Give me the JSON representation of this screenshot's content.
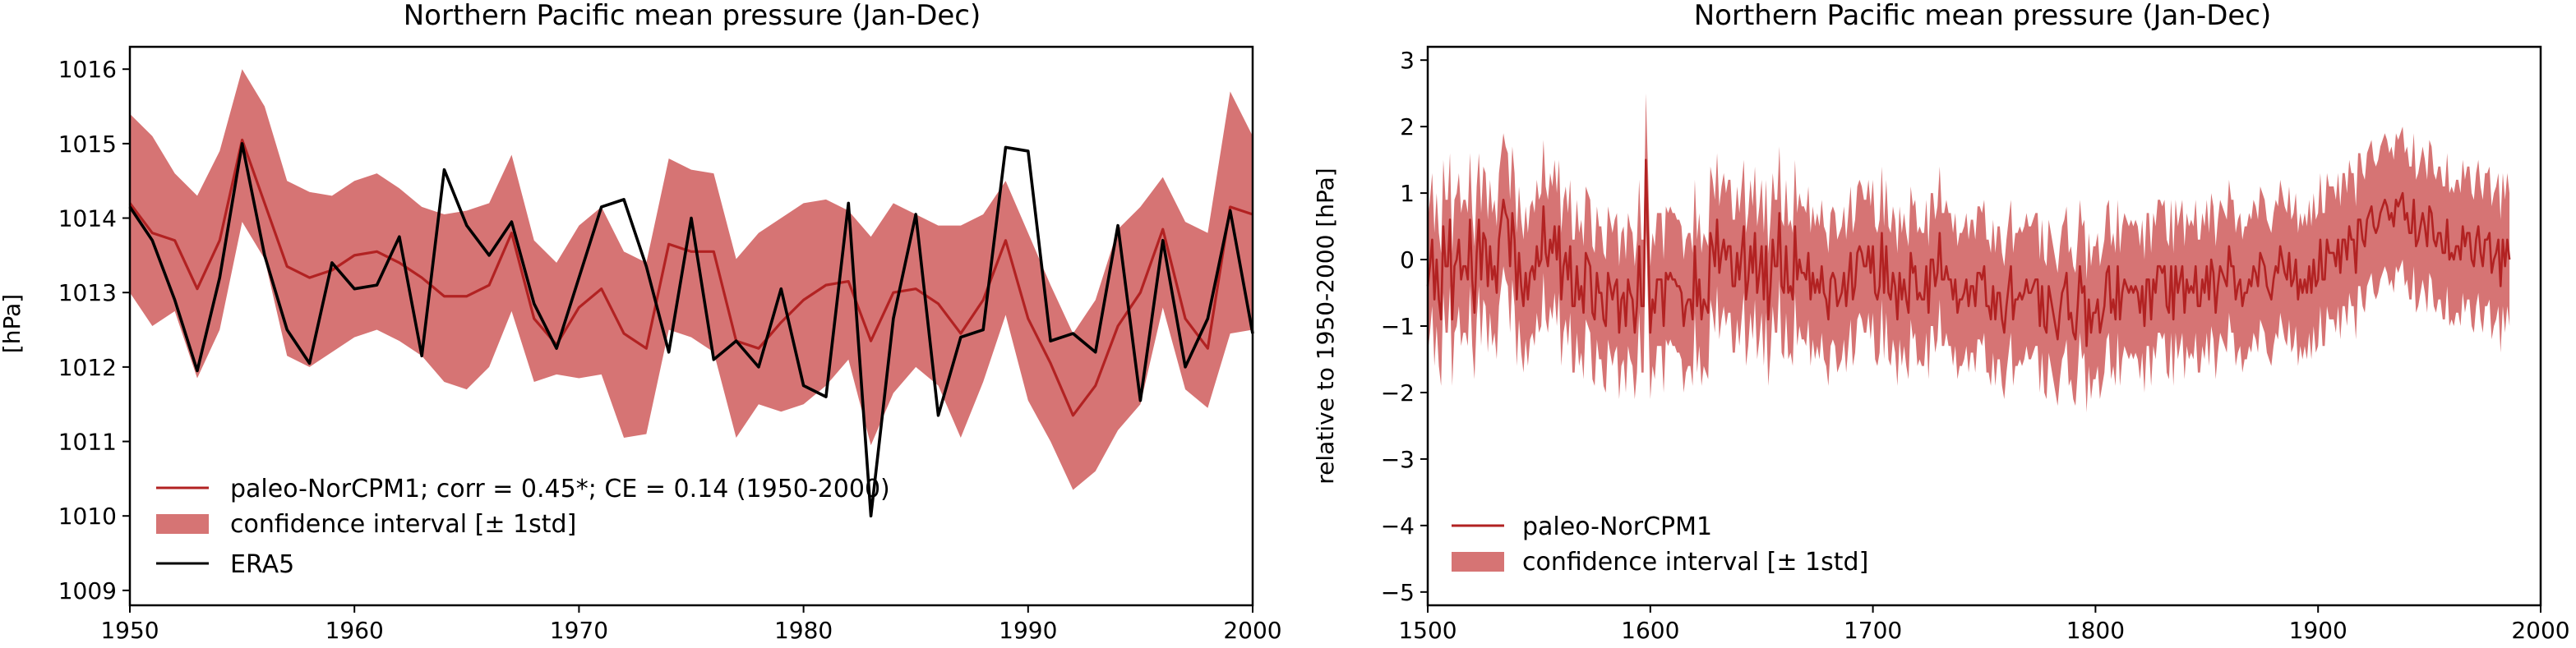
{
  "colors": {
    "reconstruction": "#b22222",
    "band": "#d67474",
    "observation": "#000000",
    "axes": "#000000"
  },
  "chart_data": [
    {
      "type": "line",
      "title": "Northern Pacific mean pressure (Jan-Dec)",
      "xlabel": "",
      "ylabel": "[hPa]",
      "xlim": [
        1950,
        2000
      ],
      "ylim": [
        1008.8,
        1016.3
      ],
      "xticks": [
        1950,
        1960,
        1970,
        1980,
        1990,
        2000
      ],
      "yticks": [
        1009,
        1010,
        1011,
        1012,
        1013,
        1014,
        1015,
        1016
      ],
      "grid": false,
      "legend_position": "lower-left",
      "x": [
        1950,
        1951,
        1952,
        1953,
        1954,
        1955,
        1956,
        1957,
        1958,
        1959,
        1960,
        1961,
        1962,
        1963,
        1964,
        1965,
        1966,
        1967,
        1968,
        1969,
        1970,
        1971,
        1972,
        1973,
        1974,
        1975,
        1976,
        1977,
        1978,
        1979,
        1980,
        1981,
        1982,
        1983,
        1984,
        1985,
        1986,
        1987,
        1988,
        1989,
        1990,
        1991,
        1992,
        1993,
        1994,
        1995,
        1996,
        1997,
        1998,
        1999,
        2000
      ],
      "series": [
        {
          "name": "paleo-NorCPM1; corr = 0.45*; CE = 0.14 (1950-2000)",
          "kind": "line",
          "values": [
            1014.2,
            1013.8,
            1013.7,
            1013.05,
            1013.7,
            1015.05,
            1014.2,
            1013.35,
            1013.2,
            1013.3,
            1013.5,
            1013.55,
            1013.4,
            1013.2,
            1012.95,
            1012.95,
            1013.1,
            1013.8,
            1012.65,
            1012.3,
            1012.8,
            1013.05,
            1012.45,
            1012.25,
            1013.65,
            1013.55,
            1013.55,
            1012.35,
            1012.25,
            1012.6,
            1012.9,
            1013.1,
            1013.15,
            1012.35,
            1013.0,
            1013.05,
            1012.85,
            1012.45,
            1012.9,
            1013.7,
            1012.65,
            1012.05,
            1011.35,
            1011.75,
            1012.55,
            1013.0,
            1013.85,
            1012.65,
            1012.25,
            1014.15,
            1014.05
          ]
        },
        {
          "name": "confidence interval [± 1std]",
          "kind": "band",
          "upper": [
            1015.4,
            1015.1,
            1014.6,
            1014.3,
            1014.9,
            1016.0,
            1015.5,
            1014.5,
            1014.35,
            1014.3,
            1014.5,
            1014.6,
            1014.4,
            1014.15,
            1014.05,
            1014.1,
            1014.2,
            1014.85,
            1013.7,
            1013.4,
            1013.9,
            1014.15,
            1013.55,
            1013.4,
            1014.8,
            1014.65,
            1014.6,
            1013.45,
            1013.8,
            1014.0,
            1014.2,
            1014.25,
            1014.1,
            1013.75,
            1014.2,
            1014.05,
            1013.9,
            1013.9,
            1014.05,
            1014.5,
            1013.8,
            1013.1,
            1012.45,
            1012.9,
            1013.85,
            1014.15,
            1014.55,
            1013.95,
            1013.8,
            1015.7,
            1015.1
          ],
          "lower": [
            1013.0,
            1012.55,
            1012.75,
            1011.85,
            1012.5,
            1013.95,
            1013.45,
            1012.15,
            1012.0,
            1012.2,
            1012.4,
            1012.5,
            1012.35,
            1012.15,
            1011.8,
            1011.7,
            1012.0,
            1012.75,
            1011.8,
            1011.9,
            1011.85,
            1011.9,
            1011.05,
            1011.1,
            1012.5,
            1012.4,
            1012.2,
            1011.05,
            1011.5,
            1011.4,
            1011.5,
            1011.75,
            1012.1,
            1010.95,
            1011.65,
            1012.0,
            1011.75,
            1011.05,
            1011.8,
            1012.7,
            1011.55,
            1011.0,
            1010.35,
            1010.6,
            1011.15,
            1011.5,
            1012.8,
            1011.7,
            1011.45,
            1012.45,
            1012.5
          ]
        },
        {
          "name": "ERA5",
          "kind": "line",
          "values": [
            1014.15,
            1013.7,
            1012.9,
            1011.95,
            1013.2,
            1015.0,
            1013.5,
            1012.5,
            1012.05,
            1013.4,
            1013.05,
            1013.1,
            1013.75,
            1012.15,
            1014.65,
            1013.9,
            1013.5,
            1013.95,
            1012.85,
            1012.25,
            1013.2,
            1014.15,
            1014.25,
            1013.35,
            1012.2,
            1014.0,
            1012.1,
            1012.35,
            1012.0,
            1013.05,
            1011.75,
            1011.6,
            1014.2,
            1010.0,
            1012.65,
            1014.05,
            1011.35,
            1012.4,
            1012.5,
            1014.95,
            1014.9,
            1012.35,
            1012.45,
            1012.2,
            1013.9,
            1011.55,
            1013.7,
            1012.0,
            1012.65,
            1014.1,
            1012.45
          ]
        }
      ]
    },
    {
      "type": "line",
      "title": "Northern Pacific mean pressure (Jan-Dec)",
      "xlabel": "",
      "ylabel": "relative to 1950-2000 [hPa]",
      "xlim": [
        1500,
        2000
      ],
      "ylim": [
        -5.2,
        3.2
      ],
      "xticks": [
        1500,
        1600,
        1700,
        1800,
        1900,
        2000
      ],
      "yticks": [
        -5,
        -4,
        -3,
        -2,
        -1,
        0,
        1,
        2,
        3
      ],
      "grid": false,
      "legend_position": "lower-left",
      "x_start": 1500,
      "x_step": 1,
      "series": [
        {
          "name": "paleo-NorCPM1",
          "kind": "line",
          "values": [
            -0.4,
            -0.1,
            0.3,
            -0.6,
            0.0,
            -0.6,
            -0.9,
            0.5,
            -0.1,
            -0.1,
            0.6,
            -0.9,
            -0.1,
            0.0,
            0.3,
            -0.3,
            -0.1,
            -0.1,
            -0.3,
            0.6,
            -0.3,
            -0.8,
            0.1,
            0.6,
            -0.3,
            0.4,
            0.3,
            -0.4,
            0.2,
            -0.3,
            -0.1,
            -0.5,
            0.3,
            0.6,
            0.9,
            0.7,
            0.6,
            -0.1,
            0.7,
            0.3,
            -0.6,
            0.1,
            -0.4,
            -0.7,
            -0.2,
            -0.6,
            -0.2,
            -0.1,
            -0.3,
            0.2,
            -0.1,
            0.0,
            0.8,
            0.1,
            -0.1,
            0.3,
            0.1,
            0.5,
            0.0,
            0.5,
            -0.6,
            -0.1,
            0.1,
            -0.3,
            0.2,
            -0.7,
            -0.7,
            -0.1,
            -0.6,
            -0.4,
            -0.8,
            0.1,
            0.0,
            -0.1,
            -0.8,
            -0.9,
            -0.2,
            -0.5,
            -0.5,
            -0.9,
            -1.0,
            -0.2,
            -0.4,
            -0.6,
            -0.4,
            -0.3,
            -1.1,
            -0.6,
            -0.5,
            -1.0,
            -0.3,
            -0.5,
            -0.6,
            -1.1,
            -0.7,
            0.2,
            -0.7,
            -0.7,
            1.5,
            0.3,
            -1.1,
            -0.6,
            -0.8,
            -0.3,
            -0.3,
            -0.3,
            -1.0,
            -0.2,
            -0.3,
            -0.2,
            -0.3,
            -0.3,
            -0.4,
            -0.4,
            -0.5,
            -1.0,
            -0.7,
            -0.6,
            -0.6,
            -0.9,
            0.2,
            -0.7,
            -0.3,
            -0.9,
            -0.6,
            -0.7,
            -0.8,
            0.4,
            0.2,
            -0.1,
            0.6,
            -0.2,
            0.1,
            0.3,
            0.0,
            0.2,
            0.2,
            -0.4,
            -0.4,
            0.1,
            -0.3,
            0.1,
            0.5,
            -0.6,
            -0.3,
            0.2,
            -0.2,
            0.4,
            -0.5,
            -0.2,
            0.2,
            -0.6,
            0.2,
            -0.9,
            -0.4,
            0.3,
            -0.1,
            -0.1,
            0.7,
            -0.4,
            -0.5,
            0.2,
            -0.5,
            -0.4,
            -0.6,
            0.5,
            -0.3,
            0.0,
            -0.2,
            -0.2,
            -0.3,
            0.1,
            -0.6,
            -0.2,
            -0.5,
            -0.3,
            -0.5,
            -0.1,
            -0.5,
            -0.6,
            -0.9,
            -0.3,
            -0.2,
            -0.3,
            -0.7,
            -0.6,
            -0.5,
            -0.2,
            -0.7,
            -0.3,
            0.1,
            -0.6,
            -0.4,
            0.1,
            0.2,
            0.1,
            -0.1,
            -0.1,
            0.2,
            -0.2,
            0.2,
            -0.5,
            -0.6,
            -0.4,
            0.4,
            -0.5,
            0.2,
            -0.5,
            -0.6,
            -0.2,
            -0.4,
            -0.9,
            -0.2,
            -0.6,
            -0.3,
            -0.6,
            -0.8,
            0.1,
            -0.2,
            -0.1,
            -0.6,
            -0.5,
            -0.6,
            -0.6,
            -0.1,
            -0.8,
            0.0,
            0.0,
            -0.4,
            -0.2,
            0.4,
            -0.3,
            -0.3,
            -0.1,
            -0.3,
            -0.3,
            -0.6,
            -0.3,
            -0.8,
            -0.6,
            -0.6,
            -0.5,
            -0.3,
            -0.7,
            -0.4,
            -0.4,
            -0.7,
            -0.2,
            -0.2,
            -0.3,
            -0.1,
            -0.7,
            -0.7,
            -0.9,
            -0.4,
            -0.9,
            -0.5,
            -0.5,
            -0.9,
            -1.1,
            -0.7,
            -0.4,
            -0.1,
            -0.9,
            -0.6,
            -0.6,
            -0.5,
            -0.6,
            -0.5,
            -0.3,
            -0.5,
            -0.5,
            -0.4,
            -0.3,
            -0.3,
            -1.0,
            -0.4,
            -1.0,
            -1.1,
            -0.4,
            -0.6,
            -0.8,
            -1.0,
            -1.2,
            -0.8,
            -0.5,
            -0.4,
            -0.2,
            -0.9,
            -0.8,
            -1.1,
            -1.2,
            -0.7,
            -0.1,
            -0.5,
            -0.4,
            -1.3,
            -0.6,
            -1.1,
            -0.8,
            -0.8,
            -0.6,
            -1.1,
            -0.9,
            -0.7,
            -0.2,
            -0.1,
            -0.8,
            -0.6,
            -0.9,
            -0.1,
            -0.9,
            -0.5,
            -0.3,
            -0.4,
            -0.5,
            -0.4,
            -0.5,
            -0.4,
            -0.5,
            -0.8,
            -0.4,
            -1.0,
            -0.3,
            -0.3,
            -0.9,
            -0.3,
            -0.5,
            -0.1,
            -0.1,
            -0.2,
            -0.1,
            -0.7,
            -0.8,
            -0.1,
            -0.9,
            -0.1,
            -0.5,
            -0.3,
            -0.1,
            -0.8,
            -0.3,
            -0.5,
            -0.4,
            -0.5,
            -0.1,
            -0.7,
            -0.7,
            -0.3,
            -0.5,
            -0.1,
            -0.6,
            0.0,
            -0.2,
            -0.8,
            -0.4,
            -0.1,
            -0.2,
            -0.3,
            -0.4,
            0.2,
            -0.1,
            -0.1,
            -0.6,
            -0.4,
            -0.3,
            -0.7,
            -0.5,
            -0.5,
            -0.3,
            -0.4,
            -0.1,
            -0.2,
            -0.4,
            0.1,
            0.0,
            -0.1,
            -0.4,
            -0.5,
            -0.6,
            -0.3,
            -0.1,
            -0.2,
            0.2,
            0.0,
            -0.2,
            -0.3,
            0.1,
            -0.4,
            -0.3,
            0.0,
            -0.6,
            -0.3,
            -0.5,
            -0.3,
            -0.5,
            -0.1,
            -0.5,
            0.0,
            -0.4,
            -0.3,
            0.3,
            -0.3,
            -0.3,
            0.3,
            0.1,
            0.1,
            0.1,
            -0.1,
            0.3,
            -0.2,
            0.3,
            0.3,
            0.0,
            0.5,
            0.3,
            0.3,
            -0.2,
            0.6,
            0.6,
            0.3,
            0.2,
            0.6,
            0.7,
            0.8,
            0.5,
            0.4,
            0.5,
            0.7,
            0.8,
            0.9,
            0.8,
            0.6,
            0.7,
            0.5,
            0.9,
            0.8,
            0.9,
            1.0,
            0.6,
            0.7,
            0.4,
            0.4,
            0.9,
            0.2,
            0.3,
            0.5,
            0.7,
            0.5,
            0.2,
            0.8,
            0.7,
            0.3,
            0.2,
            0.4,
            0.4,
            0.1,
            0.1,
            0.6,
            0.0,
            0.1,
            0.0,
            0.2,
            0.2,
            0.0,
            0.5,
            0.2,
            0.4,
            0.4,
            0.0,
            -0.1,
            0.3,
            0.5,
            0.1,
            -0.1,
            0.3,
            0.3,
            0.4,
            -0.2,
            0.0,
            0.1,
            0.3,
            -0.4,
            0.3,
            -0.1,
            0.3,
            0.0
          ],
          "style": "noisy annual reconstruction"
        },
        {
          "name": "confidence interval [± 1std]",
          "kind": "band",
          "half_width_hPa": 1.0
        }
      ]
    }
  ]
}
